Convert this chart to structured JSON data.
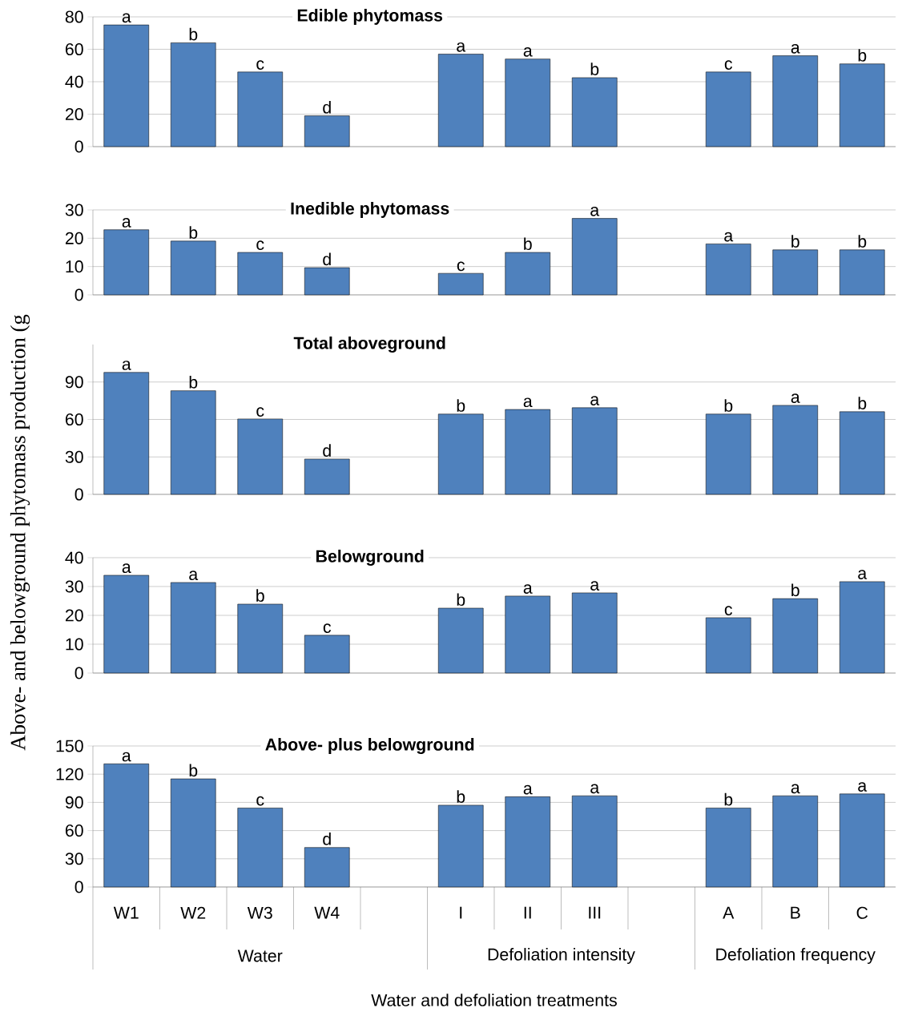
{
  "chart_data": [
    {
      "type": "bar",
      "title": "Edible phytomass",
      "values": [
        75,
        64,
        46,
        19,
        null,
        57,
        54,
        42.5,
        null,
        46,
        56,
        51
      ],
      "value_labels": [
        "a",
        "b",
        "c",
        "d",
        null,
        "a",
        "a",
        "b",
        null,
        "c",
        "a",
        "b"
      ],
      "color": "#4f81bd",
      "ylim": [
        0,
        80
      ],
      "yticks": [
        0,
        20,
        40,
        60,
        80
      ],
      "grid": "y",
      "tick_labels": "y"
    },
    {
      "type": "bar",
      "title": "Inedible phytomass",
      "values": [
        23,
        19,
        15,
        9.6,
        null,
        7.6,
        15,
        27,
        null,
        18,
        15.9,
        15.9
      ],
      "value_labels": [
        "a",
        "b",
        "c",
        "d",
        null,
        "c",
        "b",
        "a",
        null,
        "a",
        "b",
        "b"
      ],
      "color": "#4f81bd",
      "ylim": [
        0,
        30
      ],
      "yticks": [
        0,
        10,
        20,
        30
      ],
      "grid": "y",
      "tick_labels": "y"
    },
    {
      "type": "bar",
      "title": "Total aboveground",
      "ylabel": "Above- and belowground phytomass production (g",
      "values": [
        97.7,
        83,
        60.4,
        28.3,
        null,
        64.3,
        68,
        69.4,
        null,
        64.3,
        71.3,
        66.2
      ],
      "value_labels": [
        "a",
        "b",
        "c",
        "d",
        null,
        "b",
        "a",
        "a",
        null,
        "b",
        "a",
        "b"
      ],
      "color": "#4f81bd",
      "ylim": [
        0,
        120
      ],
      "yticks": [
        0,
        30,
        60,
        90
      ],
      "grid": "y",
      "tick_labels": "y"
    },
    {
      "type": "bar",
      "title": "Belowground",
      "values": [
        33.9,
        31.4,
        23.9,
        13.1,
        null,
        22.5,
        26.7,
        27.8,
        null,
        19.2,
        25.8,
        31.7
      ],
      "value_labels": [
        "a",
        "a",
        "b",
        "c",
        null,
        "b",
        "a",
        "a",
        null,
        "c",
        "b",
        "a"
      ],
      "color": "#4f81bd",
      "ylim": [
        0,
        40
      ],
      "yticks": [
        0,
        10,
        20,
        30,
        40
      ],
      "grid": "y",
      "tick_labels": "y"
    },
    {
      "type": "bar",
      "title": "Above- plus belowground",
      "xlabel": "Water and defoliation treatments",
      "annotations": [
        "Water",
        "Defoliation intensity",
        "Defoliation frequency"
      ],
      "categories": [
        "W1",
        "W2",
        "W3",
        "W4",
        null,
        "I",
        "II",
        "III",
        null,
        "A",
        "B",
        "C"
      ],
      "values": [
        131,
        115,
        84,
        42,
        null,
        87,
        96,
        97,
        null,
        84,
        97,
        99
      ],
      "value_labels": [
        "a",
        "b",
        "c",
        "d",
        null,
        "b",
        "a",
        "a",
        null,
        "b",
        "a",
        "a"
      ],
      "color": "#4f81bd",
      "ylim": [
        0,
        150
      ],
      "yticks": [
        0,
        30,
        60,
        90,
        120,
        150
      ],
      "grid": "y"
    }
  ]
}
